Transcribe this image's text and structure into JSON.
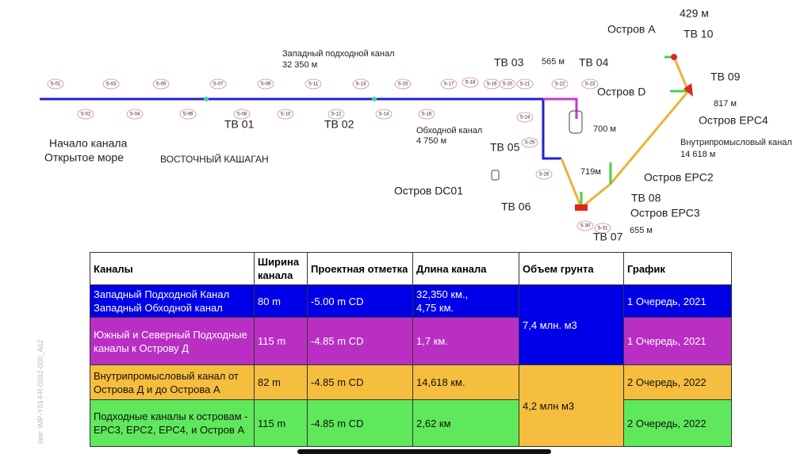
{
  "map": {
    "labels": [
      "429 м",
      "Остров А",
      "ТВ 10",
      "Западный подходной канал",
      "32 350 м",
      "ТВ 03",
      "565 м",
      "ТВ 04",
      "ТВ 09",
      "Остров D",
      "817 м",
      "ТВ 01",
      "ТВ 02",
      "Остров ЕРС4",
      "700 м",
      "Обходной канал",
      "4 750 м",
      "Внутрипромысловый канал",
      "14 618 м",
      "Начало канала",
      "Открытое море",
      "ВОСТОЧНЫЙ КАШАГАН",
      "ТВ 05",
      "719м",
      "Остров ЕРС2",
      "Остров DC01",
      "ТВ 08",
      "ТВ 06",
      "Остров ЕРС3",
      "655 м",
      "ТВ 07"
    ],
    "stations": [
      "S-01",
      "S-03",
      "S-05",
      "S-07",
      "S-09",
      "S-11",
      "S-13",
      "S-15",
      "S-17",
      "S-18",
      "S-19",
      "S-20",
      "S-21",
      "S-22",
      "S-23",
      "S-02",
      "S-04",
      "S-06",
      "S-08",
      "S-10",
      "S-12",
      "S-14",
      "S-16",
      "S-24",
      "S-25",
      "S-26",
      "S-30",
      "S-31"
    ]
  },
  "table": {
    "header": [
      "Каналы",
      "Ширина канала",
      "Проектная отметка",
      "Длина канала",
      "Объем грунта",
      "График"
    ],
    "rows": [
      [
        "Западный Подходной Канал\nЗападный Обходной канал",
        "80 m",
        "-5.00 m CD",
        "32,350 км.,\n4,75 км.",
        "1 Очередь, 2021"
      ],
      [
        "Южный и Северный Подходные каналы к Острову Д",
        "115 m",
        "-4.85 m CD",
        "1,7 км.",
        "1 Очередь, 2021"
      ],
      [
        "Внутрипромысловый канал от Острова Д и до Острова А",
        "82 m",
        "-4.85 m CD",
        "14,618 км.",
        "2 Очередь, 2022"
      ],
      [
        "Подходные каналы к островам - ЕРС3, ЕРС2, ЕРС4, и Остров А",
        "115 m",
        "-4.85 m CD",
        "2,62 км",
        "2 Очередь, 2022"
      ]
    ],
    "volumes": [
      "7,4 млн. м3",
      "4,2 млн м3"
    ]
  },
  "side_note": "late: IMP-Y03-FR-0002-000_A02"
}
